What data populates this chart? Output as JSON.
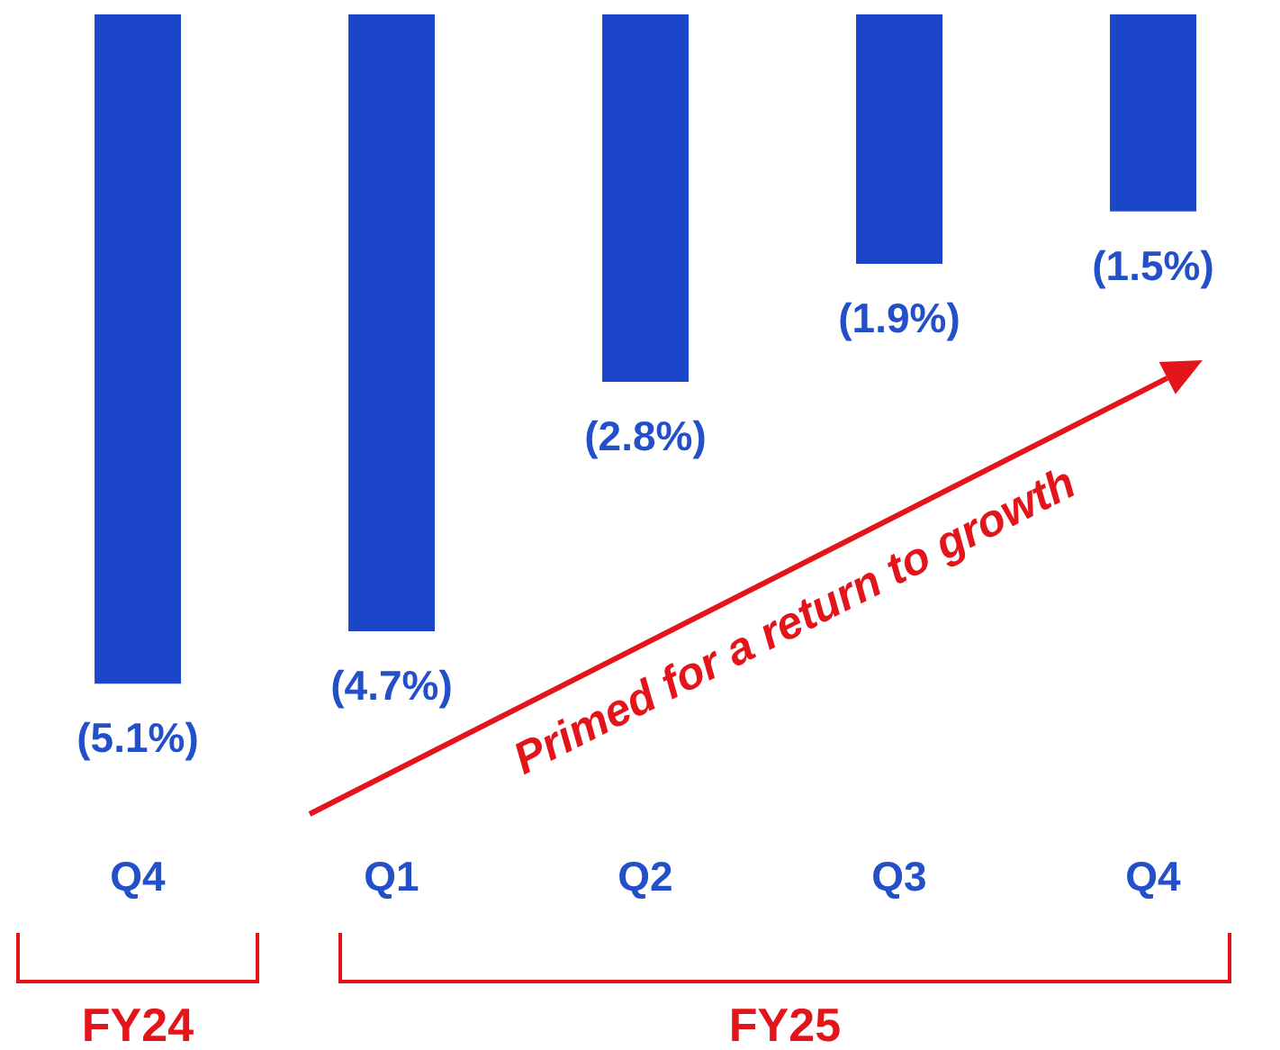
{
  "chart_data": {
    "type": "bar",
    "categories": [
      "Q4",
      "Q1",
      "Q2",
      "Q3",
      "Q4"
    ],
    "values": [
      -5.1,
      -4.7,
      -2.8,
      -1.9,
      -1.5
    ],
    "value_labels": [
      "(5.1%)",
      "(4.7%)",
      "(2.8%)",
      "(1.9%)",
      "(1.5%)"
    ],
    "color": "#1c46c9",
    "annotations": [
      "Primed for a return to growth",
      "FY24",
      "FY25"
    ]
  }
}
